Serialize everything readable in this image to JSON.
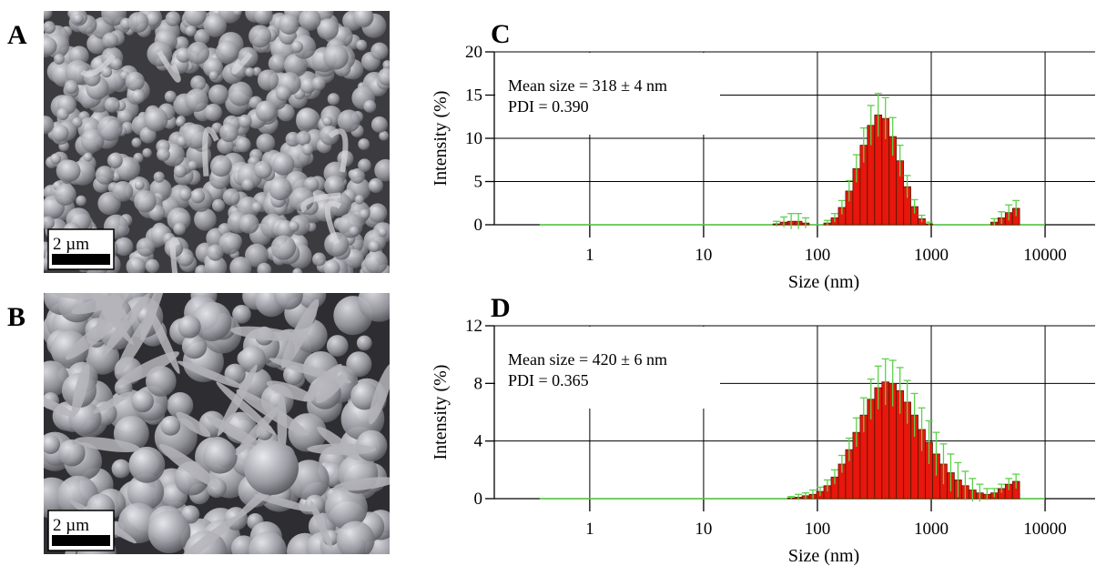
{
  "panels": [
    {
      "label": "A",
      "scale_bar": "2 µm"
    },
    {
      "label": "B",
      "scale_bar": "2 µm"
    }
  ],
  "chart_data": [
    {
      "type": "bar",
      "panel_label": "C",
      "annotations": [
        "Mean size = 318 ± 4 nm",
        "PDI = 0.390"
      ],
      "xlabel": "Size (nm)",
      "ylabel": "Intensity (%)",
      "x_scale": "log",
      "grid": true,
      "color": "#e8160c",
      "error_color": "#5ed04a",
      "xlim": [
        0.145,
        27500
      ],
      "xticks": [
        1,
        10,
        100,
        1000,
        10000
      ],
      "ylim": [
        0,
        20
      ],
      "yticks": [
        0,
        5,
        10,
        15,
        20
      ],
      "x": [
        43.8,
        50.7,
        58.8,
        68.1,
        78.8,
        91.3,
        105.7,
        122.4,
        141.8,
        164.2,
        190.1,
        220.2,
        255.0,
        295.3,
        342.0,
        396.1,
        458.7,
        531.2,
        615.1,
        712.4,
        825.0,
        955.4,
        1106,
        1281,
        1484,
        1718,
        1990,
        2305,
        2669,
        3091,
        3580,
        4145,
        4801,
        5560
      ],
      "values": [
        0.1,
        0.3,
        0.4,
        0.4,
        0.2,
        0,
        0,
        0.2,
        0.8,
        2.0,
        3.9,
        6.5,
        9.2,
        11.5,
        12.7,
        12.3,
        10.2,
        7.4,
        4.4,
        2.1,
        0.7,
        0.1,
        0,
        0,
        0,
        0,
        0,
        0,
        0,
        0,
        0.3,
        0.8,
        1.4,
        1.9
      ],
      "errors": [
        0.3,
        0.6,
        0.9,
        0.9,
        0.6,
        0,
        0,
        0.3,
        0.5,
        0.8,
        1.2,
        1.6,
        2.0,
        2.3,
        2.5,
        2.4,
        2.2,
        1.8,
        1.3,
        0.8,
        0.4,
        0.2,
        0,
        0,
        0,
        0,
        0,
        0,
        0,
        0,
        0.4,
        0.7,
        0.9,
        0.9
      ]
    },
    {
      "type": "bar",
      "panel_label": "D",
      "annotations": [
        "Mean size = 420 ± 6 nm",
        "PDI = 0.365"
      ],
      "xlabel": "Size (nm)",
      "ylabel": "Intensity (%)",
      "x_scale": "log",
      "grid": true,
      "color": "#e8160c",
      "error_color": "#5ed04a",
      "xlim": [
        0.145,
        27500
      ],
      "xticks": [
        1,
        10,
        100,
        1000,
        10000
      ],
      "ylim": [
        0,
        12
      ],
      "yticks": [
        0,
        4,
        8,
        12
      ],
      "x": [
        58.8,
        68.1,
        78.8,
        91.3,
        105.7,
        122.4,
        141.8,
        164.2,
        190.1,
        220.2,
        255.0,
        295.3,
        342.0,
        396.1,
        458.7,
        531.2,
        615.1,
        712.4,
        825.0,
        955.4,
        1106,
        1281,
        1484,
        1718,
        1990,
        2305,
        2669,
        3091,
        3580,
        4145,
        4801,
        5560
      ],
      "values": [
        0.05,
        0.1,
        0.2,
        0.3,
        0.5,
        0.9,
        1.5,
        2.4,
        3.4,
        4.6,
        5.8,
        6.9,
        7.7,
        8.1,
        8.0,
        7.5,
        6.7,
        5.8,
        4.8,
        3.9,
        3.1,
        2.4,
        1.8,
        1.3,
        0.9,
        0.6,
        0.4,
        0.3,
        0.4,
        0.7,
        1.0,
        1.2
      ],
      "errors": [
        0.1,
        0.2,
        0.2,
        0.3,
        0.3,
        0.4,
        0.5,
        0.6,
        0.8,
        1.0,
        1.2,
        1.4,
        1.5,
        1.6,
        1.6,
        1.6,
        1.5,
        1.5,
        1.5,
        1.5,
        1.5,
        1.4,
        1.3,
        1.2,
        1.0,
        0.8,
        0.6,
        0.4,
        0.3,
        0.3,
        0.4,
        0.5
      ]
    }
  ]
}
